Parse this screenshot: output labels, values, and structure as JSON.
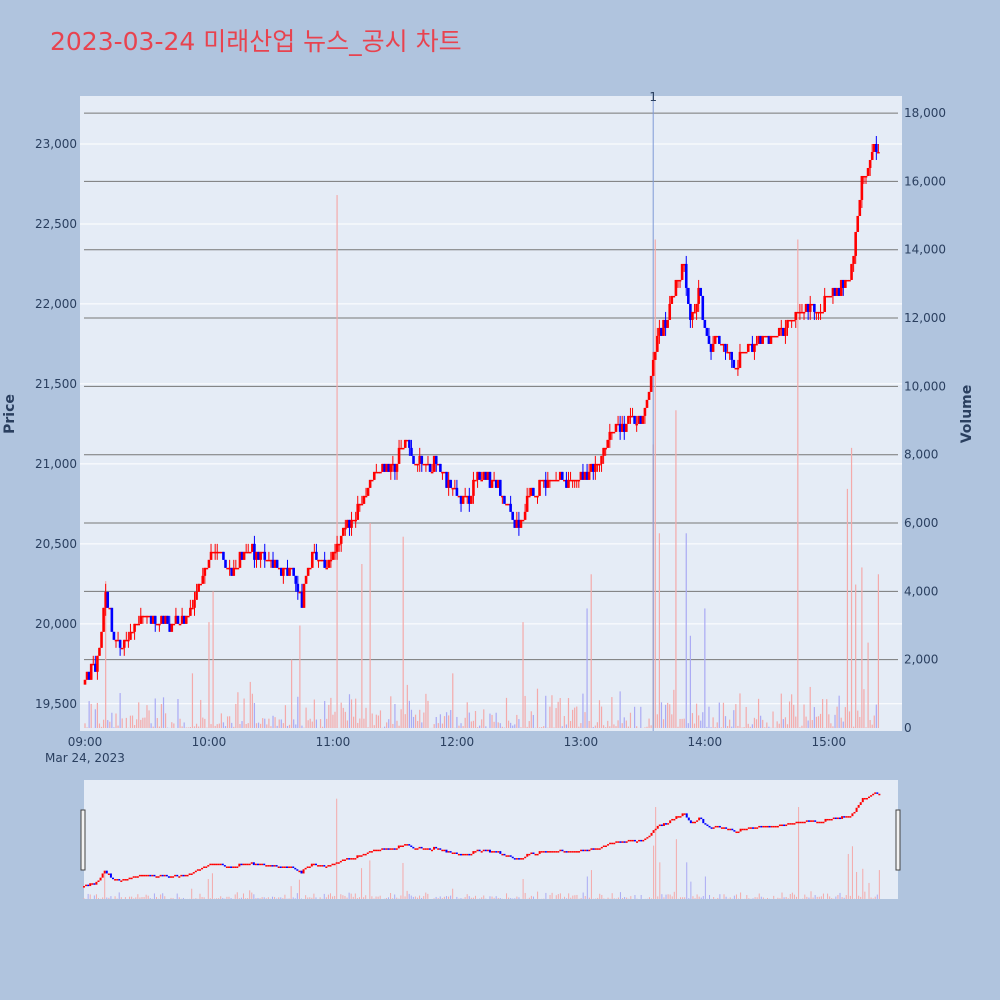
{
  "title": "2023-03-24 미래산업 뉴스_공시 차트",
  "chart_data": {
    "type": "candlestick",
    "title": "2023-03-24 미래산업 뉴스_공시 차트",
    "ylabel_left": "Price",
    "ylabel_right": "Volume",
    "price_ylim": [
      19330,
      23300
    ],
    "volume_ylim": [
      0,
      18500
    ],
    "price_ticks": [
      "19,500",
      "20,000",
      "20,500",
      "21,000",
      "21,500",
      "22,000",
      "22,500",
      "23,000"
    ],
    "price_tick_values": [
      19500,
      20000,
      20500,
      21000,
      21500,
      22000,
      22500,
      23000
    ],
    "volume_ticks": [
      "0",
      "2,000",
      "4,000",
      "6,000",
      "8,000",
      "10,000",
      "12,000",
      "14,000",
      "16,000",
      "18,000"
    ],
    "volume_tick_values": [
      0,
      2000,
      4000,
      6000,
      8000,
      10000,
      12000,
      14000,
      16000,
      18000
    ],
    "x_ticks": [
      "09:00",
      "10:00",
      "11:00",
      "12:00",
      "13:00",
      "14:00",
      "15:00"
    ],
    "x_tick_minutes": [
      0,
      60,
      120,
      180,
      240,
      300,
      360
    ],
    "x_range_minutes": [
      0,
      393
    ],
    "date_label": "Mar 24, 2023",
    "news_marker": {
      "label": "1",
      "minute": 275
    },
    "colors": {
      "up": "#ff0000",
      "down": "#0000ff",
      "up_volume": "#f4aaaa",
      "down_volume": "#aaaaf4"
    },
    "price_path_keypoints": [
      [
        0,
        19620
      ],
      [
        3,
        19720
      ],
      [
        6,
        19750
      ],
      [
        10,
        20200
      ],
      [
        14,
        19900
      ],
      [
        18,
        19850
      ],
      [
        25,
        20000
      ],
      [
        30,
        20050
      ],
      [
        40,
        20000
      ],
      [
        50,
        20050
      ],
      [
        55,
        20250
      ],
      [
        60,
        20400
      ],
      [
        65,
        20450
      ],
      [
        70,
        20300
      ],
      [
        75,
        20400
      ],
      [
        80,
        20450
      ],
      [
        90,
        20400
      ],
      [
        100,
        20300
      ],
      [
        105,
        20150
      ],
      [
        110,
        20450
      ],
      [
        115,
        20350
      ],
      [
        120,
        20450
      ],
      [
        125,
        20600
      ],
      [
        130,
        20650
      ],
      [
        140,
        20950
      ],
      [
        150,
        21000
      ],
      [
        155,
        21150
      ],
      [
        160,
        21000
      ],
      [
        170,
        21000
      ],
      [
        175,
        20900
      ],
      [
        180,
        20800
      ],
      [
        185,
        20750
      ],
      [
        190,
        20950
      ],
      [
        200,
        20850
      ],
      [
        207,
        20650
      ],
      [
        210,
        20600
      ],
      [
        215,
        20800
      ],
      [
        225,
        20900
      ],
      [
        235,
        20900
      ],
      [
        245,
        20950
      ],
      [
        250,
        21050
      ],
      [
        255,
        21200
      ],
      [
        260,
        21250
      ],
      [
        270,
        21300
      ],
      [
        273,
        21500
      ],
      [
        277,
        21800
      ],
      [
        282,
        21900
      ],
      [
        285,
        22100
      ],
      [
        290,
        22250
      ],
      [
        293,
        21900
      ],
      [
        297,
        22100
      ],
      [
        300,
        21800
      ],
      [
        303,
        21700
      ],
      [
        305,
        21800
      ],
      [
        310,
        21700
      ],
      [
        315,
        21600
      ],
      [
        320,
        21750
      ],
      [
        325,
        21750
      ],
      [
        330,
        21800
      ],
      [
        335,
        21800
      ],
      [
        340,
        21850
      ],
      [
        345,
        21950
      ],
      [
        350,
        22000
      ],
      [
        355,
        21950
      ],
      [
        360,
        22050
      ],
      [
        365,
        22100
      ],
      [
        370,
        22150
      ],
      [
        373,
        22400
      ],
      [
        376,
        22800
      ],
      [
        380,
        22900
      ],
      [
        384,
        23000
      ]
    ],
    "volume_spikes": [
      {
        "minute": 10,
        "value": 4300
      },
      {
        "minute": 52,
        "value": 1600
      },
      {
        "minute": 60,
        "value": 3100
      },
      {
        "minute": 62,
        "value": 4000
      },
      {
        "minute": 100,
        "value": 2000
      },
      {
        "minute": 104,
        "value": 3000
      },
      {
        "minute": 122,
        "value": 15600
      },
      {
        "minute": 134,
        "value": 4800
      },
      {
        "minute": 138,
        "value": 6000
      },
      {
        "minute": 154,
        "value": 5600
      },
      {
        "minute": 178,
        "value": 1600
      },
      {
        "minute": 212,
        "value": 3100
      },
      {
        "minute": 243,
        "value": 3500
      },
      {
        "minute": 245,
        "value": 4500
      },
      {
        "minute": 275,
        "value": 8300
      },
      {
        "minute": 276,
        "value": 14300
      },
      {
        "minute": 278,
        "value": 5700
      },
      {
        "minute": 286,
        "value": 9300
      },
      {
        "minute": 291,
        "value": 5700
      },
      {
        "minute": 293,
        "value": 2700
      },
      {
        "minute": 300,
        "value": 3500
      },
      {
        "minute": 345,
        "value": 14300
      },
      {
        "minute": 369,
        "value": 7000
      },
      {
        "minute": 371,
        "value": 8200
      },
      {
        "minute": 373,
        "value": 4200
      },
      {
        "minute": 376,
        "value": 4700
      },
      {
        "minute": 379,
        "value": 2500
      },
      {
        "minute": 384,
        "value": 4500
      }
    ]
  }
}
